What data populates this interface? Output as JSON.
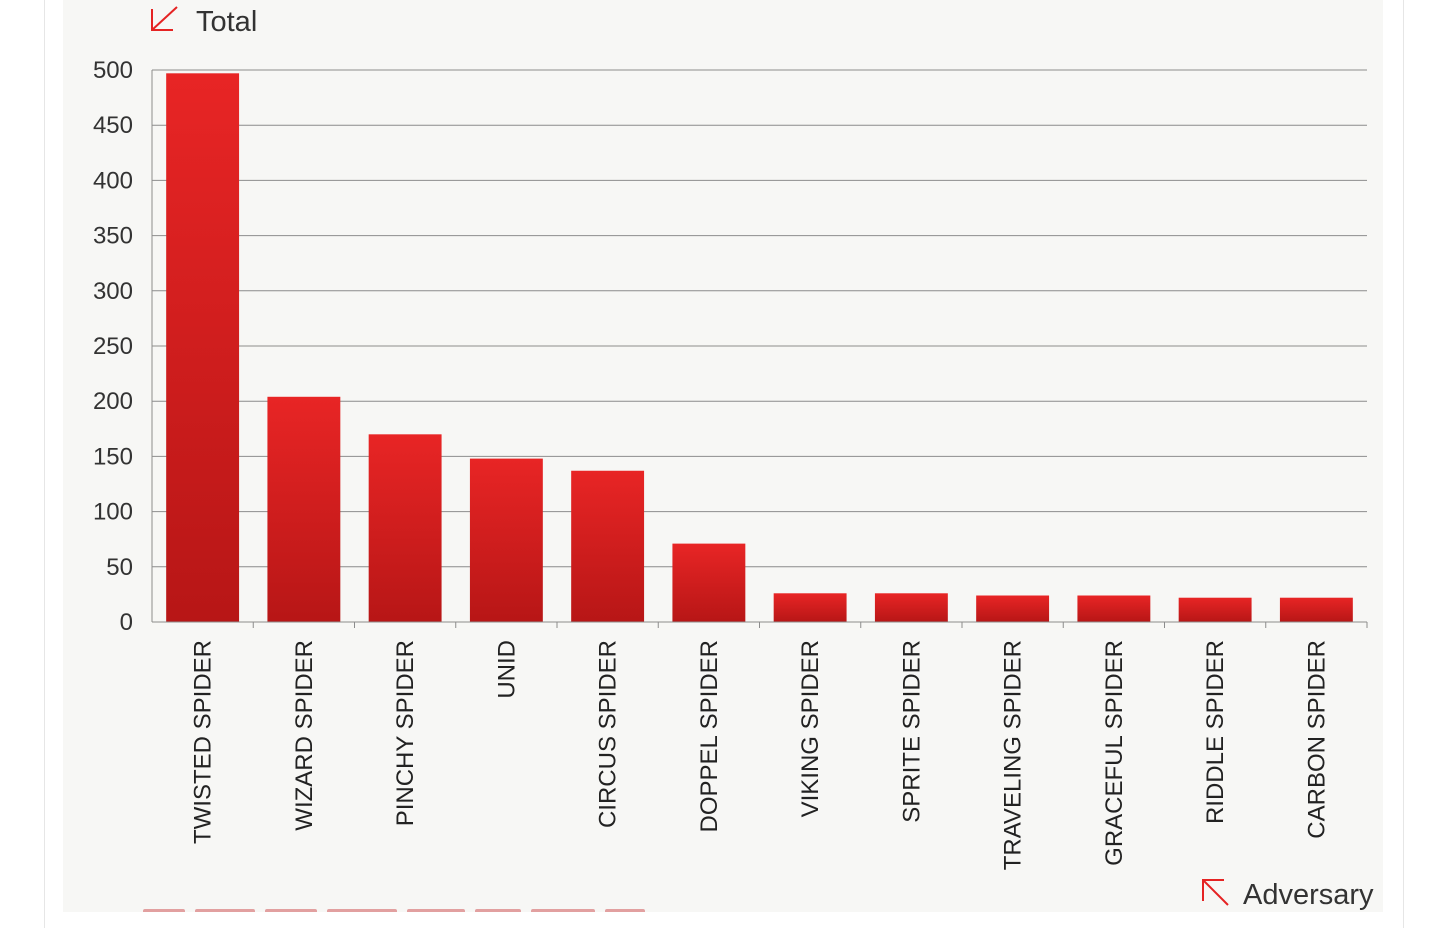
{
  "chart_data": {
    "type": "bar",
    "ylabel": "Total",
    "xlabel": "Adversary",
    "ylim": [
      0,
      500
    ],
    "yticks": [
      0,
      50,
      100,
      150,
      200,
      250,
      300,
      350,
      400,
      450,
      500
    ],
    "grid": true,
    "categories": [
      "TWISTED SPIDER",
      "WIZARD SPIDER",
      "PINCHY SPIDER",
      "UNID",
      "CIRCUS SPIDER",
      "DOPPEL SPIDER",
      "VIKING SPIDER",
      "SPRITE SPIDER",
      "TRAVELING SPIDER",
      "GRACEFUL SPIDER",
      "RIDDLE SPIDER",
      "CARBON SPIDER"
    ],
    "values": [
      497,
      204,
      170,
      148,
      137,
      71,
      26,
      26,
      24,
      24,
      22,
      22
    ],
    "bar_color": "#d91f1f"
  },
  "colors": {
    "accent": "#e52323",
    "panel_background": "#f7f7f5"
  },
  "icons": {
    "y_axis": "arrow-down-left-icon",
    "x_axis": "arrow-up-left-icon"
  }
}
